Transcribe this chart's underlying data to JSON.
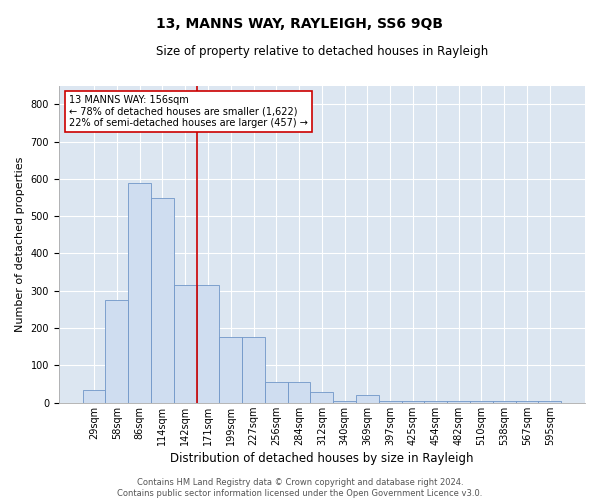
{
  "title": "13, MANNS WAY, RAYLEIGH, SS6 9QB",
  "subtitle": "Size of property relative to detached houses in Rayleigh",
  "xlabel": "Distribution of detached houses by size in Rayleigh",
  "ylabel": "Number of detached properties",
  "bin_labels": [
    "29sqm",
    "58sqm",
    "86sqm",
    "114sqm",
    "142sqm",
    "171sqm",
    "199sqm",
    "227sqm",
    "256sqm",
    "284sqm",
    "312sqm",
    "340sqm",
    "369sqm",
    "397sqm",
    "425sqm",
    "454sqm",
    "482sqm",
    "510sqm",
    "538sqm",
    "567sqm",
    "595sqm"
  ],
  "bar_heights": [
    35,
    275,
    590,
    550,
    315,
    315,
    175,
    175,
    55,
    55,
    30,
    5,
    20,
    5,
    5,
    5,
    5,
    5,
    5,
    5,
    5
  ],
  "bar_color": "#cfddf0",
  "bar_edge_color": "#7096c8",
  "vline_x": 4.5,
  "vline_color": "#cc0000",
  "ylim": [
    0,
    850
  ],
  "yticks": [
    0,
    100,
    200,
    300,
    400,
    500,
    600,
    700,
    800
  ],
  "annotation_text": "13 MANNS WAY: 156sqm\n← 78% of detached houses are smaller (1,622)\n22% of semi-detached houses are larger (457) →",
  "annotation_box_facecolor": "#ffffff",
  "annotation_box_edgecolor": "#cc0000",
  "footer_text": "Contains HM Land Registry data © Crown copyright and database right 2024.\nContains public sector information licensed under the Open Government Licence v3.0.",
  "fig_bg_color": "#ffffff",
  "plot_bg_color": "#dce6f1",
  "grid_color": "#ffffff",
  "title_fontsize": 10,
  "subtitle_fontsize": 8.5,
  "ylabel_fontsize": 8,
  "xlabel_fontsize": 8.5,
  "tick_fontsize": 7,
  "ann_fontsize": 7,
  "footer_fontsize": 6
}
